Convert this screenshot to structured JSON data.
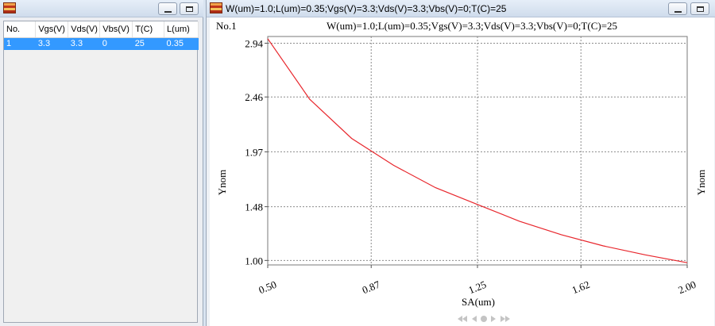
{
  "left_window": {
    "table": {
      "columns": [
        "No.",
        "Vgs(V)",
        "Vds(V)",
        "Vbs(V)",
        "T(C)",
        "L(um)"
      ],
      "rows": [
        [
          "1",
          "3.3",
          "3.3",
          "0",
          "25",
          "0.35"
        ]
      ]
    }
  },
  "right_window": {
    "title": "W(um)=1.0;L(um)=0.35;Vgs(V)=3.3;Vds(V)=3.3;Vbs(V)=0;T(C)=25"
  },
  "chart_data": {
    "type": "line",
    "plot_id": "No.1",
    "title": "W(um)=1.0;L(um)=0.35;Vgs(V)=3.3;Vds(V)=3.3;Vbs(V)=0;T(C)=25",
    "xlabel": "SA(um)",
    "ylabel": "Ynom",
    "ylabel_right": "Ynom",
    "xlim": [
      0.5,
      2.0
    ],
    "ylim": [
      0.96,
      3.0
    ],
    "xticks": [
      0.5,
      0.87,
      1.25,
      1.62,
      2.0
    ],
    "xtick_labels": [
      "0.50",
      "0.87",
      "1.25",
      "1.62",
      "2.00"
    ],
    "yticks": [
      1.0,
      1.48,
      1.97,
      2.46,
      2.94
    ],
    "ytick_labels": [
      "1.00",
      "1.48",
      "1.97",
      "2.46",
      "2.94"
    ],
    "grid": true,
    "line_color": "#e8262c",
    "series": [
      {
        "x": [
          0.5,
          0.65,
          0.8,
          0.95,
          1.1,
          1.25,
          1.4,
          1.55,
          1.7,
          1.85,
          2.0
        ],
        "values": [
          2.98,
          2.44,
          2.09,
          1.85,
          1.65,
          1.5,
          1.35,
          1.23,
          1.13,
          1.05,
          0.98
        ]
      }
    ]
  },
  "footer": {
    "nav_icons": [
      "first-icon",
      "prev-icon",
      "dot-icon",
      "next-icon",
      "last-icon"
    ]
  }
}
